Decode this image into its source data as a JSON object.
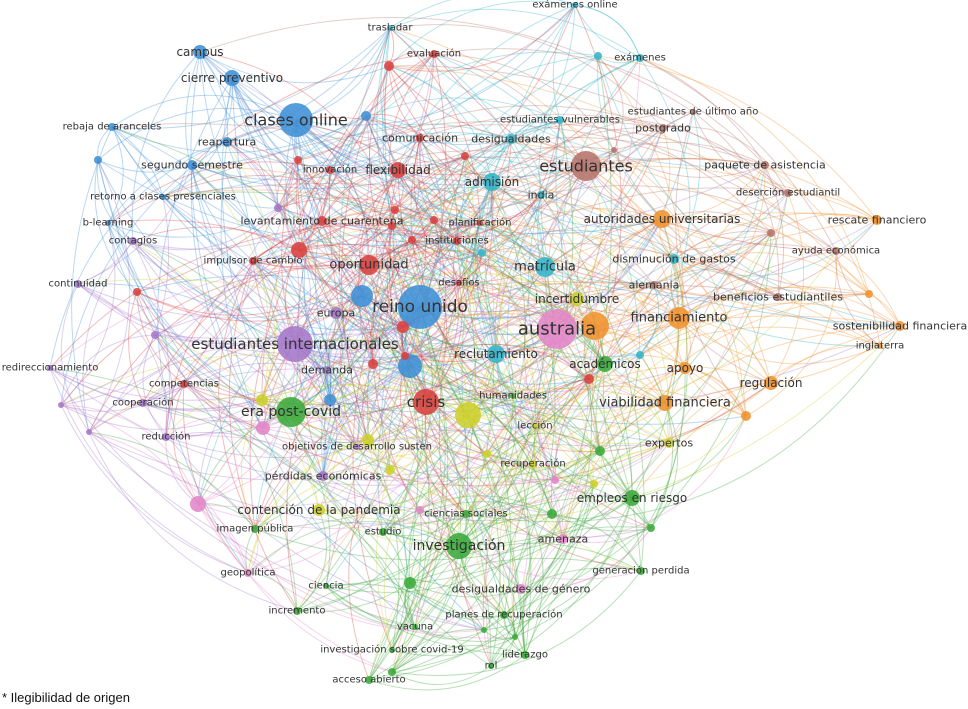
{
  "clusters": {
    "red": "#d9413f",
    "blue": "#3d8fd6",
    "cyan": "#33b5c9",
    "brown": "#b5736b",
    "orange": "#f0922d",
    "green": "#3aaa3a",
    "yellow": "#cdd02a",
    "purple": "#a478c9",
    "pink": "#e385c8"
  },
  "nodes": [
    {
      "label": "trasladar",
      "cluster": "cyan"
    },
    {
      "label": "exámenes online",
      "cluster": "cyan"
    },
    {
      "label": "exámenes",
      "cluster": "cyan"
    },
    {
      "label": "campus",
      "cluster": "blue"
    },
    {
      "label": "cierre preventivo",
      "cluster": "blue"
    },
    {
      "label": "evaluación",
      "cluster": "red"
    },
    {
      "label": "clases online",
      "cluster": "blue"
    },
    {
      "label": "rebaja de aranceles",
      "cluster": "blue"
    },
    {
      "label": "reapertura",
      "cluster": "blue"
    },
    {
      "label": "comunicación",
      "cluster": "red"
    },
    {
      "label": "desigualdades",
      "cluster": "cyan"
    },
    {
      "label": "estudiantes vulnerables",
      "cluster": "cyan"
    },
    {
      "label": "estudiantes de último año",
      "cluster": "brown"
    },
    {
      "label": "postgrado",
      "cluster": "brown"
    },
    {
      "label": "segundo semestre",
      "cluster": "blue"
    },
    {
      "label": "innovación",
      "cluster": "red"
    },
    {
      "label": "flexibilidad",
      "cluster": "red"
    },
    {
      "label": "admisión",
      "cluster": "cyan"
    },
    {
      "label": "india",
      "cluster": "cyan"
    },
    {
      "label": "estudiantes",
      "cluster": "brown"
    },
    {
      "label": "paquete de asistencia",
      "cluster": "brown"
    },
    {
      "label": "retorno a clases presenciales",
      "cluster": "blue"
    },
    {
      "label": "deserción estudiantil",
      "cluster": "brown"
    },
    {
      "label": "b-learning",
      "cluster": "blue"
    },
    {
      "label": "levantamiento de cuarentena",
      "cluster": "red"
    },
    {
      "label": "planificación",
      "cluster": "red"
    },
    {
      "label": "autoridades universitarias",
      "cluster": "orange"
    },
    {
      "label": "rescate financiero",
      "cluster": "orange"
    },
    {
      "label": "contagios",
      "cluster": "purple"
    },
    {
      "label": "instituciones",
      "cluster": "red"
    },
    {
      "label": "ayuda económica",
      "cluster": "brown"
    },
    {
      "label": "impulsor de cambio",
      "cluster": "red"
    },
    {
      "label": "oportunidad",
      "cluster": "red"
    },
    {
      "label": "disminución de gastos",
      "cluster": "cyan"
    },
    {
      "label": "matrícula",
      "cluster": "cyan"
    },
    {
      "label": "desafíos",
      "cluster": "red"
    },
    {
      "label": "alemania",
      "cluster": "brown"
    },
    {
      "label": "continuidad",
      "cluster": "purple"
    },
    {
      "label": "incertidumbre",
      "cluster": "yellow"
    },
    {
      "label": "beneficios estudiantiles",
      "cluster": "brown"
    },
    {
      "label": "reino unido",
      "cluster": "blue"
    },
    {
      "label": "europa",
      "cluster": "purple"
    },
    {
      "label": "australia",
      "cluster": "pink"
    },
    {
      "label": "financiamiento",
      "cluster": "orange"
    },
    {
      "label": "sostenibilidad financiera",
      "cluster": "orange"
    },
    {
      "label": "estudiantes internacionales",
      "cluster": "purple"
    },
    {
      "label": "inglaterra",
      "cluster": "orange"
    },
    {
      "label": "reclutamiento",
      "cluster": "cyan"
    },
    {
      "label": "académicos",
      "cluster": "green"
    },
    {
      "label": "apoyo",
      "cluster": "orange"
    },
    {
      "label": "redireccionamiento",
      "cluster": "purple"
    },
    {
      "label": "demanda",
      "cluster": "purple"
    },
    {
      "label": "competencias",
      "cluster": "red"
    },
    {
      "label": "regulación",
      "cluster": "orange"
    },
    {
      "label": "crisis",
      "cluster": "red"
    },
    {
      "label": "era post-covid",
      "cluster": "green"
    },
    {
      "label": "humanidades",
      "cluster": "green"
    },
    {
      "label": "viabilidad financiera",
      "cluster": "orange"
    },
    {
      "label": "cooperación",
      "cluster": "purple"
    },
    {
      "label": "reducción",
      "cluster": "purple"
    },
    {
      "label": "lección",
      "cluster": "yellow"
    },
    {
      "label": "objetivos de desarrollo susten",
      "cluster": "purple"
    },
    {
      "label": "expertos",
      "cluster": "yellow"
    },
    {
      "label": "recuperación",
      "cluster": "yellow"
    },
    {
      "label": "pérdidas económicas",
      "cluster": "purple"
    },
    {
      "label": "empleos en riesgo",
      "cluster": "green"
    },
    {
      "label": "contención de la pandemia",
      "cluster": "yellow"
    },
    {
      "label": "ciencias sociales",
      "cluster": "green"
    },
    {
      "label": "imagen pública",
      "cluster": "green"
    },
    {
      "label": "estudio",
      "cluster": "green"
    },
    {
      "label": "amenaza",
      "cluster": "pink"
    },
    {
      "label": "investigación",
      "cluster": "green"
    },
    {
      "label": "geopolítica",
      "cluster": "pink"
    },
    {
      "label": "ciencia",
      "cluster": "green"
    },
    {
      "label": "generación perdida",
      "cluster": "green"
    },
    {
      "label": "desigualdades de género",
      "cluster": "pink"
    },
    {
      "label": "incremento",
      "cluster": "green"
    },
    {
      "label": "planes de recuperación",
      "cluster": "green"
    },
    {
      "label": "vacuna",
      "cluster": "green"
    },
    {
      "label": "investigación sobre covid-19",
      "cluster": "green"
    },
    {
      "label": "liderazgo",
      "cluster": "green"
    },
    {
      "label": "rol",
      "cluster": "green"
    },
    {
      "label": "acceso abierto",
      "cluster": "green"
    }
  ],
  "caption": "* Ilegibilidad de origen"
}
